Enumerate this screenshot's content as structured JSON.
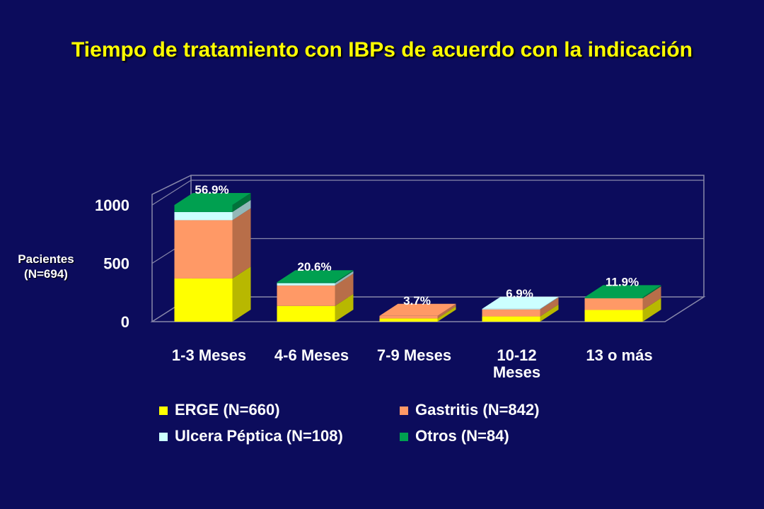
{
  "chart_data": {
    "type": "bar",
    "stacked": true,
    "three_d": true,
    "title": "Tiempo de tratamiento con IBPs de acuerdo con la indicación",
    "ylabel": "Pacientes (N=694)",
    "ylabel_lines": [
      "Pacientes",
      "(N=694)"
    ],
    "ylim": [
      0,
      1000
    ],
    "yticks": [
      0,
      500,
      1000
    ],
    "categories": [
      "1-3 Meses",
      "4-6 Meses",
      "7-9 Meses",
      "10-12 Meses",
      "13 o más"
    ],
    "category_lines": [
      [
        "1-3 Meses"
      ],
      [
        "4-6 Meses"
      ],
      [
        "7-9 Meses"
      ],
      [
        "10-12",
        "Meses"
      ],
      [
        "13 o más"
      ]
    ],
    "bar_labels": [
      "56.9%",
      "20.6%",
      "3.7%",
      "6.9%",
      "11.9%"
    ],
    "legend_position": "bottom",
    "series": [
      {
        "name": "ERGE (N=660)",
        "color": "#ffff00",
        "values": [
          370,
          135,
          28,
          45,
          100
        ]
      },
      {
        "name": "Gastritis (N=842)",
        "color": "#ff9966",
        "values": [
          500,
          175,
          22,
          60,
          100
        ]
      },
      {
        "name": "Ulcera Péptica (N=108)",
        "color": "#ccffff",
        "values": [
          70,
          20,
          0,
          5,
          0
        ]
      },
      {
        "name": "Otros (N=84)",
        "color": "#00a050",
        "values": [
          60,
          8,
          0,
          0,
          10
        ]
      }
    ]
  }
}
